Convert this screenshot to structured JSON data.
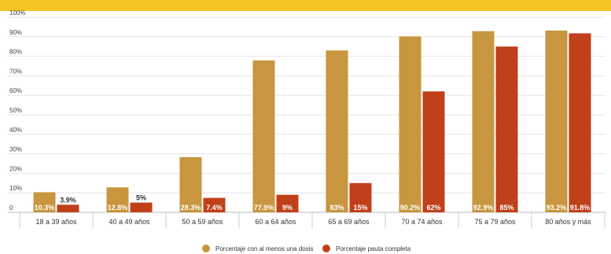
{
  "title": "",
  "chart_data": {
    "type": "bar",
    "categories": [
      "18 a 39 años",
      "40 a 49 años",
      "50 a 59 años",
      "60 a 64 años",
      "65 a 69 años",
      "70 a 74 años",
      "75 a 79 años",
      "80 años y más"
    ],
    "series": [
      {
        "name": "Porcentaje con al menos una dosis",
        "color": "#c8963e",
        "values": [
          10.3,
          12.8,
          28.3,
          77.9,
          83,
          90.2,
          92.9,
          93.2
        ],
        "labels": [
          "10.3%",
          "12.8%",
          "28.3%",
          "77.9%",
          "83%",
          "90.2%",
          "92.9%",
          "93.2%"
        ]
      },
      {
        "name": "Porcentaje pauta completa",
        "color": "#c0401a",
        "values": [
          3.9,
          5,
          7.4,
          9,
          15,
          62,
          85,
          91.8
        ],
        "labels": [
          "3.9%",
          "5%",
          "7.4%",
          "9%",
          "15%",
          "62%",
          "85%",
          "91.8%"
        ]
      }
    ],
    "yticks": [
      "0",
      "10%",
      "20%",
      "30%",
      "40%",
      "50%",
      "60%",
      "70%",
      "80%",
      "90%",
      "100%"
    ],
    "ylim": [
      0,
      100
    ],
    "grid": true,
    "legend": "bottom-center"
  }
}
